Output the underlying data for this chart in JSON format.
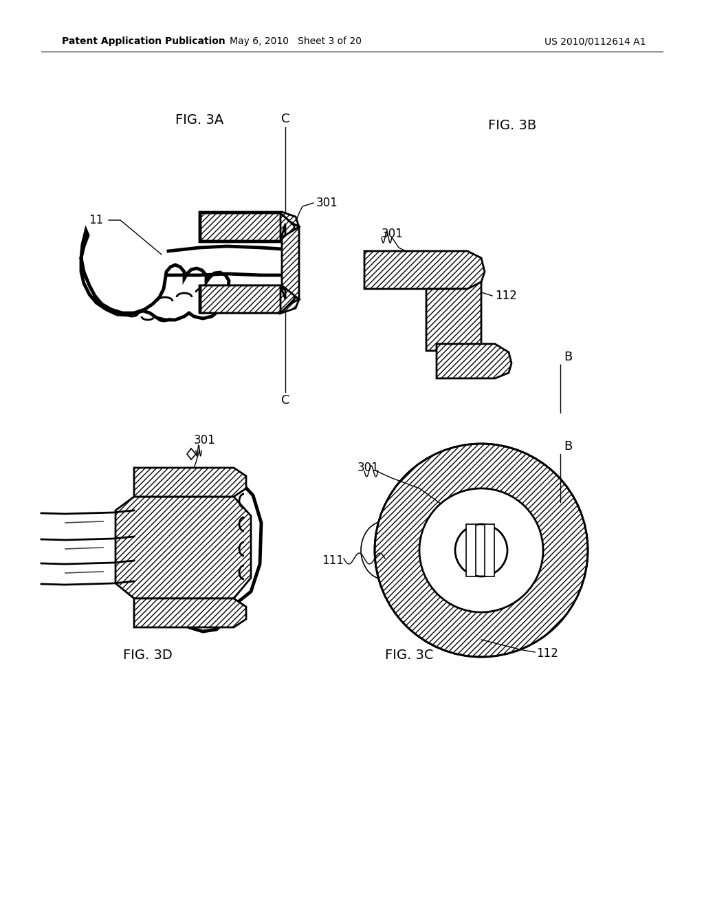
{
  "header_left": "Patent Application Publication",
  "header_center": "May 6, 2010   Sheet 3 of 20",
  "header_right": "US 2010/0112614 A1",
  "background_color": "#ffffff",
  "fig3a_label": "FIG. 3A",
  "fig3b_label": "FIG. 3B",
  "fig3c_label": "FIG. 3C",
  "fig3d_label": "FIG. 3D",
  "label_11": "11",
  "label_301_3a": "301",
  "label_301_3b": "301",
  "label_112_3b": "112",
  "label_301_3d": "301",
  "label_301_3c": "301",
  "label_111_3c": "111",
  "label_112_3c": "112",
  "label_C_top": "C",
  "label_C_bot": "C",
  "label_B_3b": "B",
  "label_B_3c": "B"
}
